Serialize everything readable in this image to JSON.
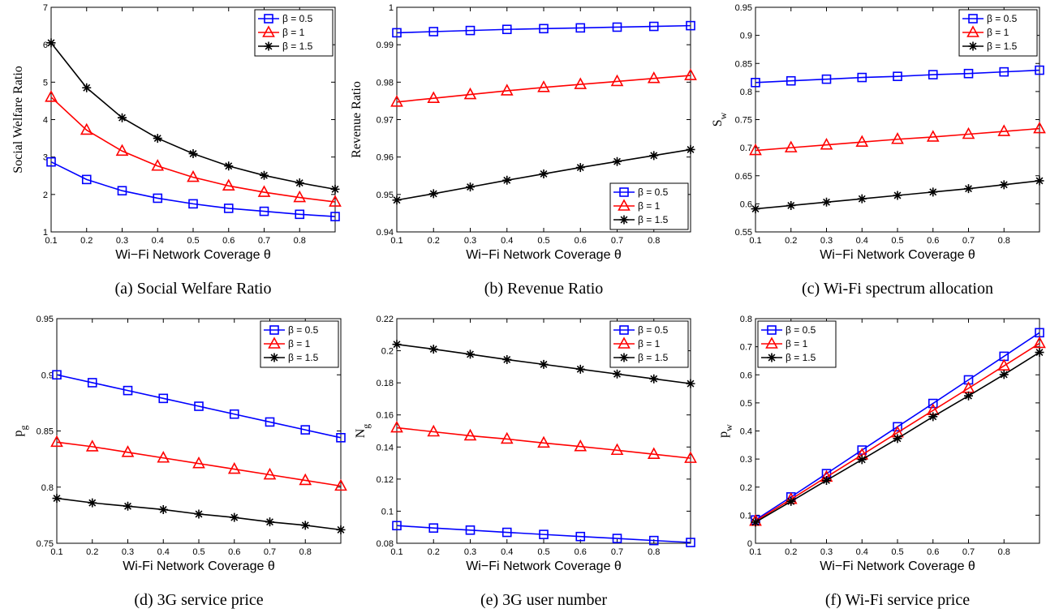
{
  "figure": {
    "series_colors": [
      "#0000ff",
      "#ff0000",
      "#000000"
    ],
    "marker_names": [
      "square",
      "triangle",
      "star"
    ]
  },
  "chart_data": [
    {
      "type": "line",
      "caption": "(a) Social Welfare Ratio",
      "xlabel": "Wi−Fi Network Coverage θ",
      "ylabel": "Social Welfare Ratio",
      "ylabel_sub": "",
      "x": [
        0.1,
        0.2,
        0.3,
        0.4,
        0.5,
        0.6,
        0.7,
        0.8,
        0.9
      ],
      "xlim": [
        0.1,
        0.9
      ],
      "ylim": [
        1,
        7
      ],
      "xticks": [
        "0.1",
        "0.2",
        "0.3",
        "0.4",
        "0.5",
        "0.6",
        "0.7",
        "0.8"
      ],
      "yticks": [
        "1",
        "2",
        "3",
        "4",
        "5",
        "6",
        "7"
      ],
      "legend": "top-right",
      "series": [
        {
          "name": "β = 0.5",
          "values": [
            2.87,
            2.4,
            2.1,
            1.9,
            1.75,
            1.63,
            1.55,
            1.47,
            1.41
          ]
        },
        {
          "name": "β = 1",
          "values": [
            4.6,
            3.72,
            3.16,
            2.76,
            2.46,
            2.23,
            2.06,
            1.92,
            1.8
          ]
        },
        {
          "name": "β = 1.5",
          "values": [
            6.05,
            4.85,
            4.05,
            3.5,
            3.09,
            2.76,
            2.51,
            2.31,
            2.14
          ]
        }
      ]
    },
    {
      "type": "line",
      "caption": "(b) Revenue Ratio",
      "xlabel": "Wi−Fi Network Coverage θ",
      "ylabel": "Revenue Ratio",
      "ylabel_sub": "",
      "x": [
        0.1,
        0.2,
        0.3,
        0.4,
        0.5,
        0.6,
        0.7,
        0.8,
        0.9
      ],
      "xlim": [
        0.1,
        0.9
      ],
      "ylim": [
        0.94,
        1.0
      ],
      "xticks": [
        "0.1",
        "0.2",
        "0.3",
        "0.4",
        "0.5",
        "0.6",
        "0.7",
        "0.8"
      ],
      "yticks": [
        "0.94",
        "0.95",
        "0.96",
        "0.97",
        "0.98",
        "0.99",
        "1"
      ],
      "legend": "bottom-right",
      "series": [
        {
          "name": "β = 0.5",
          "values": [
            0.9932,
            0.9935,
            0.9938,
            0.9941,
            0.9943,
            0.9945,
            0.9947,
            0.9949,
            0.9951
          ]
        },
        {
          "name": "β = 1",
          "values": [
            0.9747,
            0.9757,
            0.9767,
            0.9777,
            0.9786,
            0.9794,
            0.9802,
            0.981,
            0.9818
          ]
        },
        {
          "name": "β = 1.5",
          "values": [
            0.9485,
            0.9502,
            0.952,
            0.9538,
            0.9555,
            0.9572,
            0.9588,
            0.9604,
            0.962
          ]
        }
      ]
    },
    {
      "type": "line",
      "caption": "(c) Wi-Fi spectrum allocation",
      "xlabel": "Wi−Fi Network Coverage θ",
      "ylabel": "S",
      "ylabel_sub": "w",
      "x": [
        0.1,
        0.2,
        0.3,
        0.4,
        0.5,
        0.6,
        0.7,
        0.8,
        0.9
      ],
      "xlim": [
        0.1,
        0.9
      ],
      "ylim": [
        0.55,
        0.95
      ],
      "xticks": [
        "0.1",
        "0.2",
        "0.3",
        "0.4",
        "0.5",
        "0.6",
        "0.7",
        "0.8"
      ],
      "yticks": [
        "0.55",
        "0.6",
        "0.65",
        "0.7",
        "0.75",
        "0.8",
        "0.85",
        "0.9",
        "0.95"
      ],
      "legend": "top-right",
      "series": [
        {
          "name": "β = 0.5",
          "values": [
            0.816,
            0.819,
            0.822,
            0.825,
            0.827,
            0.83,
            0.832,
            0.835,
            0.838
          ]
        },
        {
          "name": "β = 1",
          "values": [
            0.695,
            0.7,
            0.705,
            0.71,
            0.715,
            0.719,
            0.724,
            0.729,
            0.734
          ]
        },
        {
          "name": "β = 1.5",
          "values": [
            0.591,
            0.597,
            0.603,
            0.609,
            0.615,
            0.621,
            0.627,
            0.634,
            0.641
          ]
        }
      ]
    },
    {
      "type": "line",
      "caption": "(d) 3G service price",
      "xlabel": "Wi-Fi Network Coverage θ",
      "ylabel": "p",
      "ylabel_sub": "g",
      "x": [
        0.1,
        0.2,
        0.3,
        0.4,
        0.5,
        0.6,
        0.7,
        0.8,
        0.9
      ],
      "xlim": [
        0.1,
        0.9
      ],
      "ylim": [
        0.75,
        0.95
      ],
      "xticks": [
        "0.1",
        "0.2",
        "0.3",
        "0.4",
        "0.5",
        "0.6",
        "0.7",
        "0.8"
      ],
      "yticks": [
        "0.75",
        "0.8",
        "0.85",
        "0.9",
        "0.95"
      ],
      "legend": "top-right",
      "series": [
        {
          "name": "β = 0.5",
          "values": [
            0.9,
            0.893,
            0.886,
            0.879,
            0.872,
            0.865,
            0.858,
            0.851,
            0.844
          ]
        },
        {
          "name": "β = 1",
          "values": [
            0.84,
            0.836,
            0.831,
            0.826,
            0.821,
            0.816,
            0.811,
            0.806,
            0.801
          ]
        },
        {
          "name": "β = 1.5",
          "values": [
            0.79,
            0.786,
            0.783,
            0.78,
            0.776,
            0.773,
            0.769,
            0.766,
            0.762
          ]
        }
      ]
    },
    {
      "type": "line",
      "caption": "(e) 3G user number",
      "xlabel": "Wi−Fi Network Coverage θ",
      "ylabel": "N",
      "ylabel_sub": "g",
      "x": [
        0.1,
        0.2,
        0.3,
        0.4,
        0.5,
        0.6,
        0.7,
        0.8,
        0.9
      ],
      "xlim": [
        0.1,
        0.9
      ],
      "ylim": [
        0.08,
        0.22
      ],
      "xticks": [
        "0.1",
        "0.2",
        "0.3",
        "0.4",
        "0.5",
        "0.6",
        "0.7",
        "0.8"
      ],
      "yticks": [
        "0.08",
        "0.1",
        "0.12",
        "0.14",
        "0.16",
        "0.18",
        "0.2",
        "0.22"
      ],
      "legend": "top-right",
      "series": [
        {
          "name": "β = 0.5",
          "values": [
            0.091,
            0.0895,
            0.0882,
            0.0868,
            0.0855,
            0.0842,
            0.083,
            0.0817,
            0.0805
          ]
        },
        {
          "name": "β = 1",
          "values": [
            0.152,
            0.1495,
            0.147,
            0.145,
            0.1425,
            0.1403,
            0.138,
            0.1355,
            0.133
          ]
        },
        {
          "name": "β = 1.5",
          "values": [
            0.204,
            0.201,
            0.1978,
            0.1945,
            0.1915,
            0.1885,
            0.1855,
            0.1825,
            0.1795
          ]
        }
      ]
    },
    {
      "type": "line",
      "caption": "(f) Wi-Fi service price",
      "xlabel": "Wi−Fi Network Coverage θ",
      "ylabel": "p",
      "ylabel_sub": "w",
      "x": [
        0.1,
        0.2,
        0.3,
        0.4,
        0.5,
        0.6,
        0.7,
        0.8,
        0.9
      ],
      "xlim": [
        0.1,
        0.9
      ],
      "ylim": [
        0,
        0.8
      ],
      "xticks": [
        "0.1",
        "0.2",
        "0.3",
        "0.4",
        "0.5",
        "0.6",
        "0.7",
        "0.8"
      ],
      "yticks": [
        "0",
        "0.1",
        "0.2",
        "0.3",
        "0.4",
        "0.5",
        "0.6",
        "0.7",
        "0.8"
      ],
      "legend": "top-left",
      "series": [
        {
          "name": "β = 0.5",
          "values": [
            0.083,
            0.165,
            0.248,
            0.332,
            0.415,
            0.498,
            0.582,
            0.666,
            0.75
          ]
        },
        {
          "name": "β = 1",
          "values": [
            0.079,
            0.157,
            0.236,
            0.315,
            0.394,
            0.473,
            0.552,
            0.632,
            0.712
          ]
        },
        {
          "name": "β = 1.5",
          "values": [
            0.075,
            0.149,
            0.224,
            0.298,
            0.373,
            0.451,
            0.525,
            0.601,
            0.68
          ]
        }
      ]
    }
  ]
}
